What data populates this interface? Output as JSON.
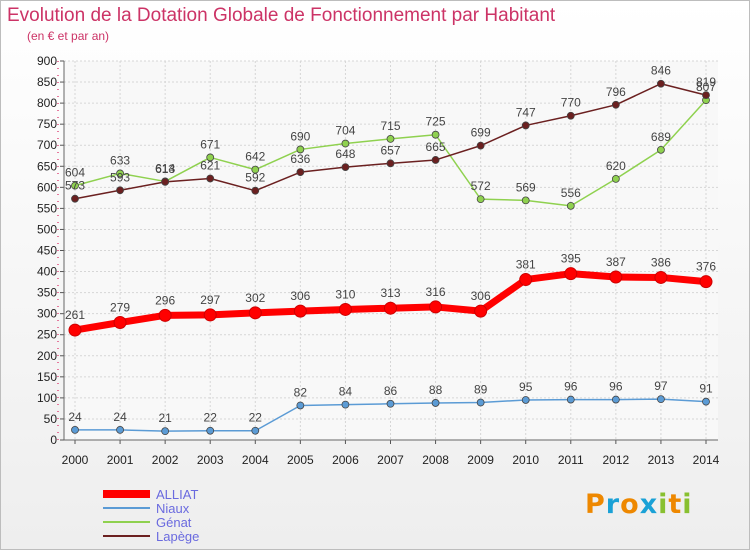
{
  "title": "Evolution de la Dotation Globale de Fonctionnement par Habitant",
  "subtitle": "(en € et par an)",
  "logo": {
    "letters": [
      "P",
      "r",
      "o",
      "x",
      "i",
      "t",
      "i"
    ],
    "colors": [
      "#ee8800",
      "#1aa1d6",
      "#ee8800",
      "#1aa1d6",
      "#88c030",
      "#ee8800",
      "#88c030"
    ]
  },
  "chart_data": {
    "type": "line",
    "x": [
      2000,
      2001,
      2002,
      2003,
      2004,
      2005,
      2006,
      2007,
      2008,
      2009,
      2010,
      2011,
      2012,
      2013,
      2014
    ],
    "ylim": [
      0,
      900
    ],
    "yticks": [
      0,
      50,
      100,
      150,
      200,
      250,
      300,
      350,
      400,
      450,
      500,
      550,
      600,
      650,
      700,
      750,
      800,
      850,
      900
    ],
    "grid": true,
    "legend": "bottom-left",
    "series": [
      {
        "name": "ALLIAT",
        "color": "#ff0000",
        "values": [
          261,
          279,
          296,
          297,
          302,
          306,
          310,
          313,
          316,
          306,
          381,
          395,
          387,
          386,
          376
        ]
      },
      {
        "name": "Niaux",
        "color": "#5b9bd5",
        "values": [
          24,
          24,
          21,
          22,
          22,
          82,
          84,
          86,
          88,
          89,
          95,
          96,
          96,
          97,
          91
        ]
      },
      {
        "name": "Génat",
        "color": "#8fd14f",
        "values": [
          604,
          633,
          614,
          671,
          642,
          690,
          704,
          715,
          725,
          572,
          569,
          556,
          620,
          689,
          807
        ]
      },
      {
        "name": "Lapège",
        "color": "#6b2020",
        "values": [
          573,
          593,
          613,
          621,
          592,
          636,
          648,
          657,
          665,
          699,
          747,
          770,
          796,
          846,
          819
        ]
      }
    ]
  }
}
